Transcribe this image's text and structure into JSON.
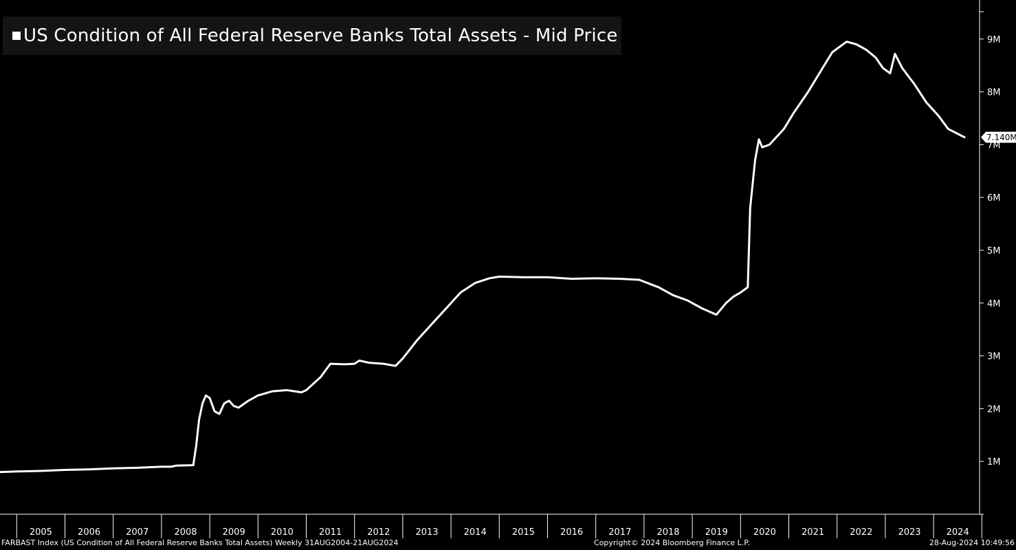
{
  "chart_data": {
    "type": "line",
    "title": "US Condition of All Federal Reserve Banks Total Assets - Mid Price",
    "series": [
      {
        "name": "US Condition of All Federal Reserve Banks Total Assets - Mid Price",
        "color": "#ffffff",
        "points": [
          [
            2004.66,
            0.8
          ],
          [
            2005.0,
            0.81
          ],
          [
            2005.5,
            0.82
          ],
          [
            2006.0,
            0.84
          ],
          [
            2006.5,
            0.85
          ],
          [
            2007.0,
            0.87
          ],
          [
            2007.5,
            0.88
          ],
          [
            2008.0,
            0.9
          ],
          [
            2008.2,
            0.9
          ],
          [
            2008.3,
            0.92
          ],
          [
            2008.66,
            0.93
          ],
          [
            2008.72,
            1.3
          ],
          [
            2008.78,
            1.8
          ],
          [
            2008.85,
            2.1
          ],
          [
            2008.92,
            2.25
          ],
          [
            2009.0,
            2.2
          ],
          [
            2009.1,
            1.95
          ],
          [
            2009.2,
            1.9
          ],
          [
            2009.3,
            2.1
          ],
          [
            2009.4,
            2.15
          ],
          [
            2009.5,
            2.05
          ],
          [
            2009.6,
            2.02
          ],
          [
            2009.8,
            2.15
          ],
          [
            2010.0,
            2.25
          ],
          [
            2010.3,
            2.33
          ],
          [
            2010.6,
            2.35
          ],
          [
            2010.9,
            2.31
          ],
          [
            2011.0,
            2.35
          ],
          [
            2011.3,
            2.6
          ],
          [
            2011.5,
            2.85
          ],
          [
            2011.8,
            2.84
          ],
          [
            2012.0,
            2.85
          ],
          [
            2012.1,
            2.91
          ],
          [
            2012.3,
            2.87
          ],
          [
            2012.6,
            2.85
          ],
          [
            2012.85,
            2.81
          ],
          [
            2013.0,
            2.95
          ],
          [
            2013.3,
            3.3
          ],
          [
            2013.6,
            3.6
          ],
          [
            2013.9,
            3.9
          ],
          [
            2014.2,
            4.2
          ],
          [
            2014.5,
            4.38
          ],
          [
            2014.8,
            4.47
          ],
          [
            2015.0,
            4.5
          ],
          [
            2015.5,
            4.49
          ],
          [
            2016.0,
            4.49
          ],
          [
            2016.5,
            4.46
          ],
          [
            2017.0,
            4.47
          ],
          [
            2017.5,
            4.46
          ],
          [
            2017.9,
            4.44
          ],
          [
            2018.3,
            4.3
          ],
          [
            2018.6,
            4.15
          ],
          [
            2018.9,
            4.05
          ],
          [
            2019.2,
            3.9
          ],
          [
            2019.5,
            3.78
          ],
          [
            2019.7,
            4.0
          ],
          [
            2019.85,
            4.12
          ],
          [
            2020.0,
            4.2
          ],
          [
            2020.15,
            4.3
          ],
          [
            2020.2,
            5.8
          ],
          [
            2020.3,
            6.7
          ],
          [
            2020.38,
            7.1
          ],
          [
            2020.45,
            6.95
          ],
          [
            2020.6,
            7.0
          ],
          [
            2020.9,
            7.3
          ],
          [
            2021.1,
            7.6
          ],
          [
            2021.4,
            8.0
          ],
          [
            2021.7,
            8.45
          ],
          [
            2021.9,
            8.75
          ],
          [
            2022.2,
            8.95
          ],
          [
            2022.4,
            8.9
          ],
          [
            2022.6,
            8.8
          ],
          [
            2022.8,
            8.65
          ],
          [
            2022.95,
            8.45
          ],
          [
            2023.1,
            8.35
          ],
          [
            2023.2,
            8.72
          ],
          [
            2023.35,
            8.45
          ],
          [
            2023.6,
            8.15
          ],
          [
            2023.85,
            7.8
          ],
          [
            2024.1,
            7.55
          ],
          [
            2024.3,
            7.3
          ],
          [
            2024.64,
            7.14
          ]
        ]
      }
    ],
    "xlim": [
      2004.66,
      2024.96
    ],
    "ylim": [
      0,
      9.6
    ],
    "y_ticks": [
      1,
      2,
      3,
      4,
      5,
      6,
      7,
      8,
      9
    ],
    "y_tick_labels": [
      "1M",
      "2M",
      "3M",
      "4M",
      "5M",
      "6M",
      "7M",
      "8M",
      "9M"
    ],
    "x_tick_labels": [
      "2005",
      "2006",
      "2007",
      "2008",
      "2009",
      "2010",
      "2011",
      "2012",
      "2013",
      "2014",
      "2015",
      "2016",
      "2017",
      "2018",
      "2019",
      "2020",
      "2021",
      "2022",
      "2023",
      "2024"
    ],
    "last_value_label": "7.140M",
    "last_value": 7.14,
    "grid": false
  },
  "footer": {
    "description": "FARBAST Index (US Condition of All Federal Reserve Banks Total Assets)  Weekly 31AUG2004-21AUG2024",
    "copyright": "Copyright© 2024 Bloomberg Finance L.P.",
    "timestamp": "28-Aug-2024 10:49:56"
  },
  "colors": {
    "background": "#000000",
    "line": "#ffffff",
    "legend_bg": "#141414"
  }
}
